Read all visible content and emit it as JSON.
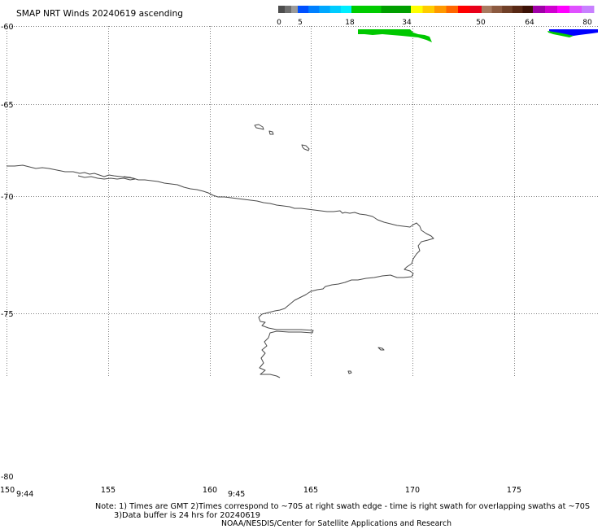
{
  "title": "SMAP NRT Winds 20240619 ascending",
  "colorbar": {
    "ticks": [
      "0",
      "5",
      "18",
      "34",
      "50",
      "64",
      "80"
    ],
    "band_colors": [
      [
        "#4d4d4d",
        "#6f6f6f",
        "#9a9a9a"
      ],
      [
        "#0050ff",
        "#0080ff",
        "#00a8ff",
        "#00ccff",
        "#00eeff"
      ],
      [
        "#00cc00",
        "#009f00"
      ],
      [
        "#ffff00",
        "#ffcc00",
        "#ff9900",
        "#ff6600",
        "#ff0000",
        "#e8001a"
      ],
      [
        "#a87a60",
        "#8c5a40",
        "#704028",
        "#582814",
        "#3c1206"
      ],
      [
        "#a000a8",
        "#d000d0",
        "#ff00ff",
        "#e050ff",
        "#c880ff"
      ]
    ]
  },
  "axes": {
    "latitude": [
      "-60",
      "-65",
      "-70",
      "-75",
      "-80"
    ],
    "longitude": [
      "150",
      "155",
      "160",
      "165",
      "170",
      "175"
    ]
  },
  "swath_times": [
    "9:44",
    "9:45"
  ],
  "notes": [
    "Note: 1) Times are GMT 2)Times correspond to ~70S at right swath edge - time is right swath for overlapping swaths at ~70S",
    "3)Data buffer is 24 hrs for 20240619",
    "NOAA/NESDIS/Center for Satellite Applications and Research"
  ],
  "colors": {
    "background": "#ffffff",
    "text": "#000000",
    "grid": "#808080",
    "coastline": "#4a4a4a",
    "swath_green": "#00c800",
    "swath_blue": "#0000ff"
  }
}
